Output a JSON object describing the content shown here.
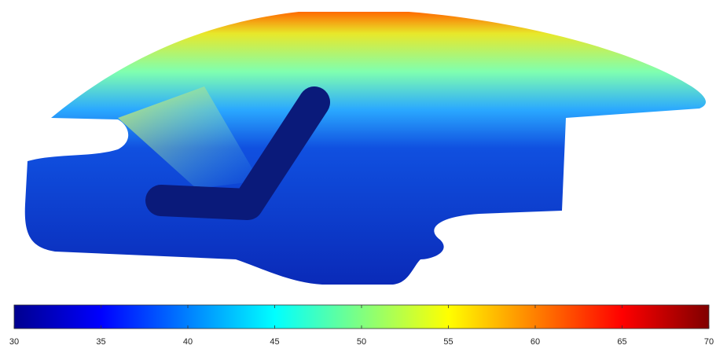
{
  "chart_data": {
    "type": "colorbar",
    "colormap": "jet",
    "clim": [
      30,
      70
    ],
    "ticks": [
      30,
      35,
      40,
      45,
      50,
      55,
      60,
      65,
      70
    ]
  }
}
